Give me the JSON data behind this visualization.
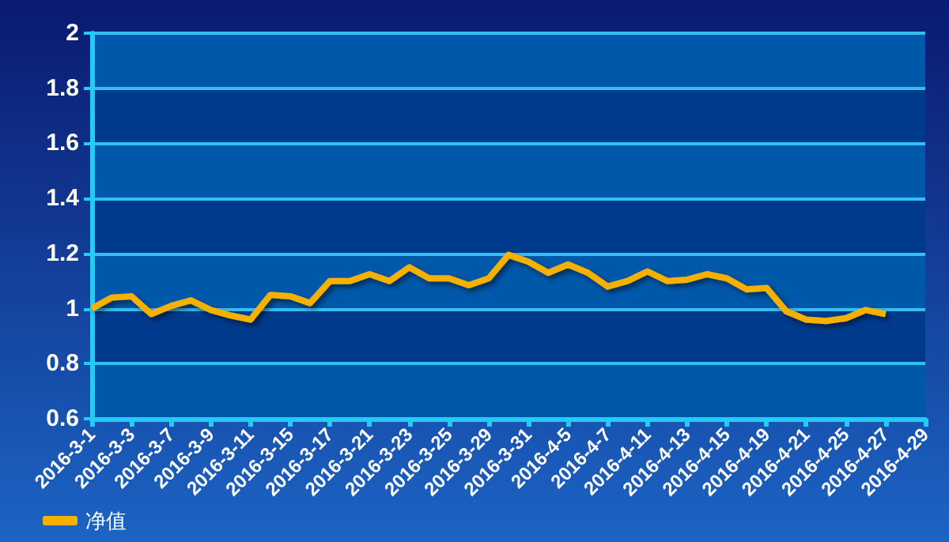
{
  "chart_data": {
    "type": "line",
    "categories": [
      "2016-3-1",
      null,
      "2016-3-3",
      null,
      "2016-3-7",
      null,
      "2016-3-9",
      null,
      "2016-3-11",
      null,
      "2016-3-15",
      null,
      "2016-3-17",
      null,
      "2016-3-21",
      null,
      "2016-3-23",
      null,
      "2016-3-25",
      null,
      "2016-3-29",
      null,
      "2016-3-31",
      null,
      "2016-4-5",
      null,
      "2016-4-7",
      null,
      "2016-4-11",
      null,
      "2016-4-13",
      null,
      "2016-4-15",
      null,
      "2016-4-19",
      null,
      "2016-4-21",
      null,
      "2016-4-25",
      null,
      "2016-4-27",
      null,
      "2016-4-29"
    ],
    "series": [
      {
        "name": "净值",
        "color": "#f5b000",
        "values": [
          1.0,
          1.04,
          1.045,
          0.98,
          1.01,
          1.03,
          0.995,
          0.975,
          0.96,
          1.05,
          1.045,
          1.02,
          1.1,
          1.1,
          1.125,
          1.1,
          1.15,
          1.11,
          1.11,
          1.085,
          1.11,
          1.195,
          1.17,
          1.13,
          1.16,
          1.13,
          1.08,
          1.1,
          1.135,
          1.1,
          1.105,
          1.125,
          1.11,
          1.07,
          1.075,
          0.99,
          0.96,
          0.955,
          0.965,
          0.995,
          0.98,
          null,
          null
        ]
      }
    ],
    "ylim": [
      0.6,
      2
    ],
    "yticks": [
      0.6,
      0.8,
      1,
      1.2,
      1.4,
      1.6,
      1.8,
      2
    ],
    "grid": "y",
    "legend": "bottom left",
    "marker": "none",
    "line_style": "solid"
  }
}
